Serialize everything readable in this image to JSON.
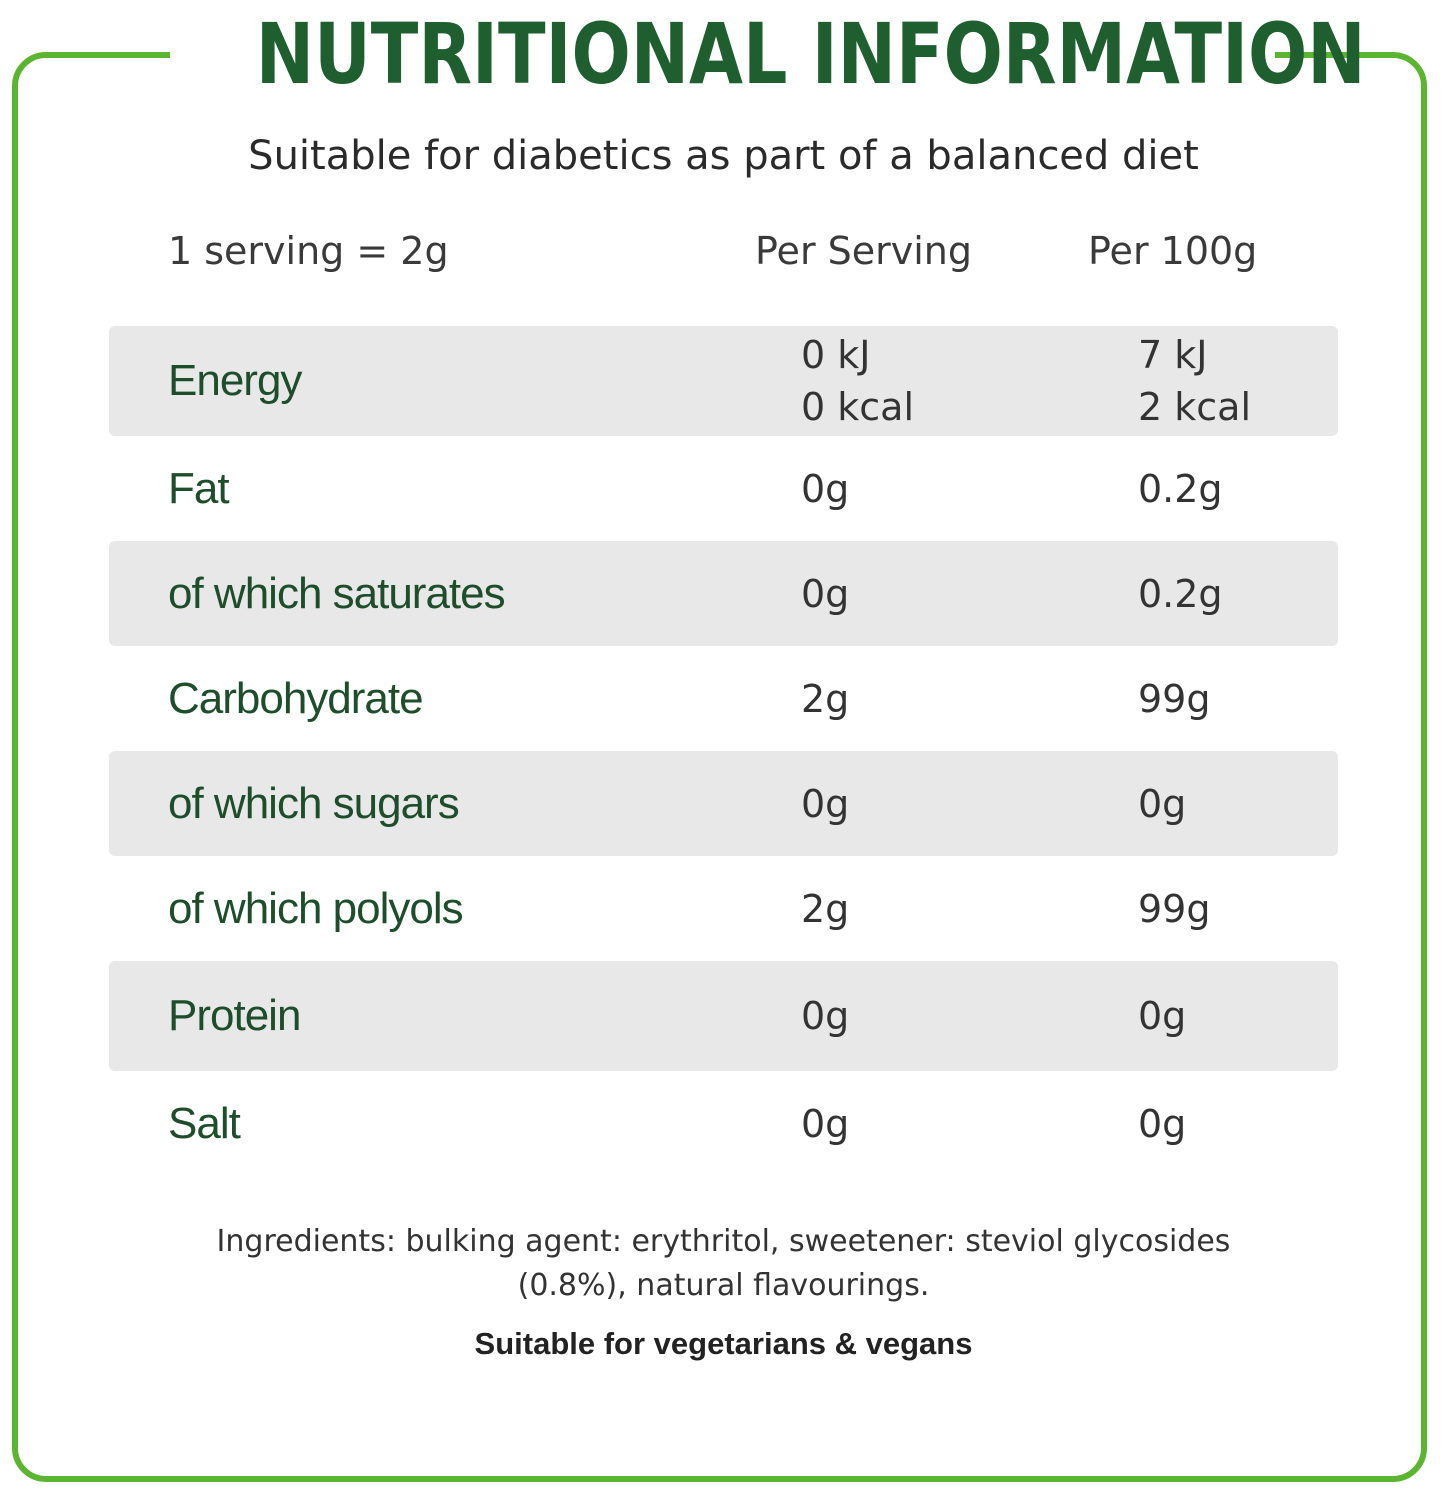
{
  "header": {
    "title": "NUTRITIONAL INFORMATION",
    "subtitle": "Suitable for diabetics as part of a balanced diet"
  },
  "columns": {
    "serving_size": "1 serving = 2g",
    "per_serving": "Per Serving",
    "per_100g": "Per 100g"
  },
  "rows": [
    {
      "name": "Energy",
      "per_serving": [
        "0 kJ",
        "0 kcal"
      ],
      "per_100g": [
        "7 kJ",
        "2 kcal"
      ]
    },
    {
      "name": "Fat",
      "per_serving": "0g",
      "per_100g": "0.2g"
    },
    {
      "name": "of which saturates",
      "per_serving": "0g",
      "per_100g": "0.2g"
    },
    {
      "name": "Carbohydrate",
      "per_serving": "2g",
      "per_100g": "99g"
    },
    {
      "name": "of which sugars",
      "per_serving": "0g",
      "per_100g": "0g"
    },
    {
      "name": "of which polyols",
      "per_serving": "2g",
      "per_100g": "99g"
    },
    {
      "name": "Protein",
      "per_serving": "0g",
      "per_100g": "0g"
    },
    {
      "name": "Salt",
      "per_serving": "0g",
      "per_100g": "0g"
    }
  ],
  "footer": {
    "ingredients_line1": "Ingredients: bulking agent: erythritol, sweetener: steviol glycosides",
    "ingredients_line2": "(0.8%), natural flavourings.",
    "vegan_note": "Suitable for vegetarians & vegans"
  },
  "colors": {
    "frame": "#5cb531",
    "title": "#1f5e2e",
    "row_shade": "#e8e8e8",
    "nutrient_name": "#1e4d2b"
  }
}
